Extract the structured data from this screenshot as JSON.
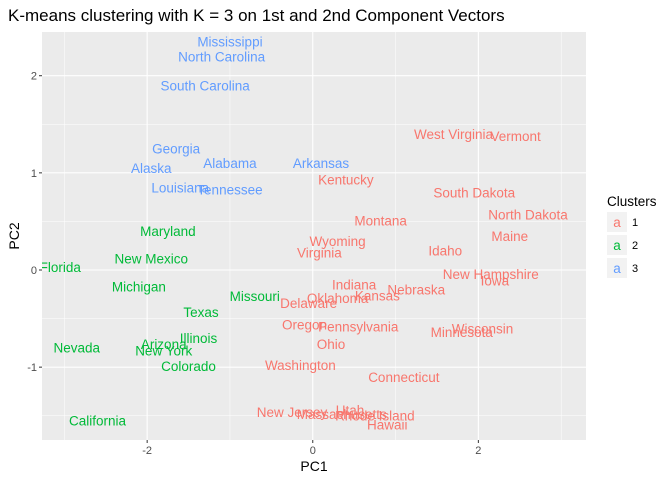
{
  "chart_data": {
    "type": "scatter",
    "title": "K-means clustering with K = 3 on 1st and 2nd Component Vectors",
    "xlabel": "PC1",
    "ylabel": "PC2",
    "xlim": [
      -3.27,
      3.3
    ],
    "ylim": [
      -1.75,
      2.45
    ],
    "xticks": [
      -2,
      0,
      2
    ],
    "yticks": [
      -1,
      0,
      1,
      2
    ],
    "grid": true,
    "legend": {
      "title": "Clusters",
      "placement": "right",
      "glyph": "a",
      "entries": [
        {
          "label": "1",
          "color": "#F8766D"
        },
        {
          "label": "2",
          "color": "#00BA38"
        },
        {
          "label": "3",
          "color": "#619CFF"
        }
      ]
    },
    "points": [
      {
        "label": "Mississippi",
        "x": -1.0,
        "y": 2.35,
        "cluster": "3"
      },
      {
        "label": "North Carolina",
        "x": -1.1,
        "y": 2.2,
        "cluster": "3"
      },
      {
        "label": "South Carolina",
        "x": -1.3,
        "y": 1.9,
        "cluster": "3"
      },
      {
        "label": "Georgia",
        "x": -1.65,
        "y": 1.25,
        "cluster": "3"
      },
      {
        "label": "Alabama",
        "x": -1.0,
        "y": 1.1,
        "cluster": "3"
      },
      {
        "label": "Arkansas",
        "x": 0.1,
        "y": 1.1,
        "cluster": "3"
      },
      {
        "label": "Alaska",
        "x": -1.95,
        "y": 1.05,
        "cluster": "3"
      },
      {
        "label": "Louisiana",
        "x": -1.6,
        "y": 0.85,
        "cluster": "3"
      },
      {
        "label": "Tennessee",
        "x": -1.0,
        "y": 0.83,
        "cluster": "3"
      },
      {
        "label": "Maryland",
        "x": -1.75,
        "y": 0.4,
        "cluster": "2"
      },
      {
        "label": "New Mexico",
        "x": -1.95,
        "y": 0.12,
        "cluster": "2"
      },
      {
        "label": "Florida",
        "x": -3.05,
        "y": 0.03,
        "cluster": "2"
      },
      {
        "label": "Michigan",
        "x": -2.1,
        "y": -0.17,
        "cluster": "2"
      },
      {
        "label": "Missouri",
        "x": -0.7,
        "y": -0.27,
        "cluster": "2"
      },
      {
        "label": "Texas",
        "x": -1.35,
        "y": -0.43,
        "cluster": "2"
      },
      {
        "label": "Illinois",
        "x": -1.38,
        "y": -0.7,
        "cluster": "2"
      },
      {
        "label": "Arizona",
        "x": -1.8,
        "y": -0.76,
        "cluster": "2"
      },
      {
        "label": "New York",
        "x": -1.8,
        "y": -0.83,
        "cluster": "2"
      },
      {
        "label": "Nevada",
        "x": -2.85,
        "y": -0.8,
        "cluster": "2"
      },
      {
        "label": "Colorado",
        "x": -1.5,
        "y": -0.99,
        "cluster": "2"
      },
      {
        "label": "California",
        "x": -2.6,
        "y": -1.55,
        "cluster": "2"
      },
      {
        "label": "West Virginia",
        "x": 1.7,
        "y": 1.4,
        "cluster": "1"
      },
      {
        "label": "Vermont",
        "x": 2.45,
        "y": 1.38,
        "cluster": "1"
      },
      {
        "label": "Kentucky",
        "x": 0.4,
        "y": 0.93,
        "cluster": "1"
      },
      {
        "label": "South Dakota",
        "x": 1.95,
        "y": 0.8,
        "cluster": "1"
      },
      {
        "label": "North Dakota",
        "x": 2.6,
        "y": 0.57,
        "cluster": "1"
      },
      {
        "label": "Montana",
        "x": 0.82,
        "y": 0.51,
        "cluster": "1"
      },
      {
        "label": "Maine",
        "x": 2.38,
        "y": 0.35,
        "cluster": "1"
      },
      {
        "label": "Wyoming",
        "x": 0.3,
        "y": 0.3,
        "cluster": "1"
      },
      {
        "label": "Idaho",
        "x": 1.6,
        "y": 0.2,
        "cluster": "1"
      },
      {
        "label": "Virginia",
        "x": 0.08,
        "y": 0.18,
        "cluster": "1"
      },
      {
        "label": "New Hampshire",
        "x": 2.15,
        "y": -0.04,
        "cluster": "1"
      },
      {
        "label": "Iowa",
        "x": 2.2,
        "y": -0.11,
        "cluster": "1"
      },
      {
        "label": "Indiana",
        "x": 0.5,
        "y": -0.15,
        "cluster": "1"
      },
      {
        "label": "Nebraska",
        "x": 1.25,
        "y": -0.2,
        "cluster": "1"
      },
      {
        "label": "Kansas",
        "x": 0.78,
        "y": -0.26,
        "cluster": "1"
      },
      {
        "label": "Oklahoma",
        "x": 0.3,
        "y": -0.29,
        "cluster": "1"
      },
      {
        "label": "Delaware",
        "x": -0.05,
        "y": -0.34,
        "cluster": "1"
      },
      {
        "label": "Oregon",
        "x": -0.1,
        "y": -0.56,
        "cluster": "1"
      },
      {
        "label": "Pennsylvania",
        "x": 0.55,
        "y": -0.58,
        "cluster": "1"
      },
      {
        "label": "Wisconsin",
        "x": 2.05,
        "y": -0.6,
        "cluster": "1"
      },
      {
        "label": "Minnesota",
        "x": 1.8,
        "y": -0.64,
        "cluster": "1"
      },
      {
        "label": "Ohio",
        "x": 0.22,
        "y": -0.76,
        "cluster": "1"
      },
      {
        "label": "Washington",
        "x": -0.15,
        "y": -0.98,
        "cluster": "1"
      },
      {
        "label": "Connecticut",
        "x": 1.1,
        "y": -1.1,
        "cluster": "1"
      },
      {
        "label": "New Jersey",
        "x": -0.25,
        "y": -1.46,
        "cluster": "1"
      },
      {
        "label": "Massachusetts",
        "x": 0.35,
        "y": -1.48,
        "cluster": "1"
      },
      {
        "label": "Rhode Island",
        "x": 0.75,
        "y": -1.5,
        "cluster": "1"
      },
      {
        "label": "Utah",
        "x": 0.45,
        "y": -1.44,
        "cluster": "1"
      },
      {
        "label": "Hawaii",
        "x": 0.9,
        "y": -1.59,
        "cluster": "1"
      }
    ]
  }
}
